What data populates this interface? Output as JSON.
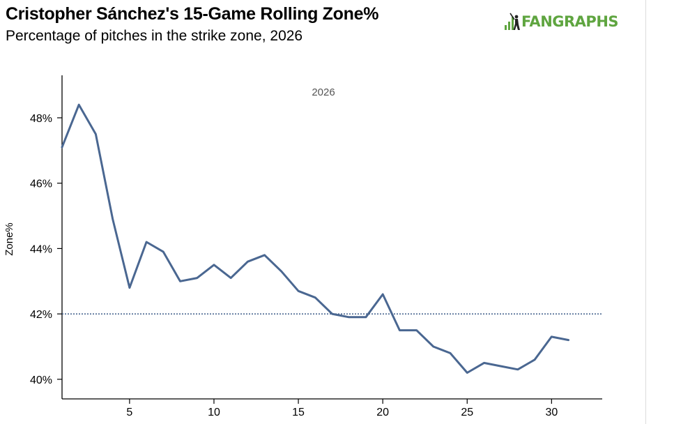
{
  "header": {
    "title": "Cristopher Sánchez's 15-Game Rolling Zone%",
    "subtitle": "Percentage of pitches in the strike zone, 2026"
  },
  "logo": {
    "text": "FANGRAPHS",
    "color": "#5fa540"
  },
  "chart_data": {
    "type": "line",
    "title": "Cristopher Sánchez's 15-Game Rolling Zone%",
    "subtitle": "Percentage of pitches in the strike zone, 2026",
    "xlabel": "",
    "ylabel": "Zone%",
    "annotation": "2026",
    "xlim": [
      1,
      33
    ],
    "ylim": [
      39.4,
      49.3
    ],
    "x_ticks": [
      5,
      10,
      15,
      20,
      25,
      30
    ],
    "y_ticks": [
      40,
      42,
      44,
      46,
      48
    ],
    "y_tick_labels": [
      "40%",
      "42%",
      "44%",
      "46%",
      "48%"
    ],
    "reference_line": {
      "y": 42.0,
      "style": "dotted"
    },
    "grid": false,
    "line_color": "#4a6791",
    "series": [
      {
        "x": [
          1,
          2,
          3,
          4,
          5,
          6,
          7,
          8,
          9,
          10,
          11,
          12,
          13,
          14,
          15,
          16,
          17,
          18,
          19,
          20,
          21,
          22,
          23,
          24,
          25,
          26,
          27,
          28,
          29,
          30,
          31
        ],
        "values": [
          47.1,
          48.4,
          47.5,
          44.9,
          42.8,
          44.2,
          43.9,
          43.0,
          43.1,
          43.5,
          43.1,
          43.6,
          43.8,
          43.3,
          42.7,
          42.5,
          42.0,
          41.9,
          41.9,
          42.6,
          41.5,
          41.5,
          41.0,
          40.8,
          40.2,
          40.5,
          40.4,
          40.3,
          40.6,
          41.3,
          41.2
        ]
      }
    ]
  }
}
